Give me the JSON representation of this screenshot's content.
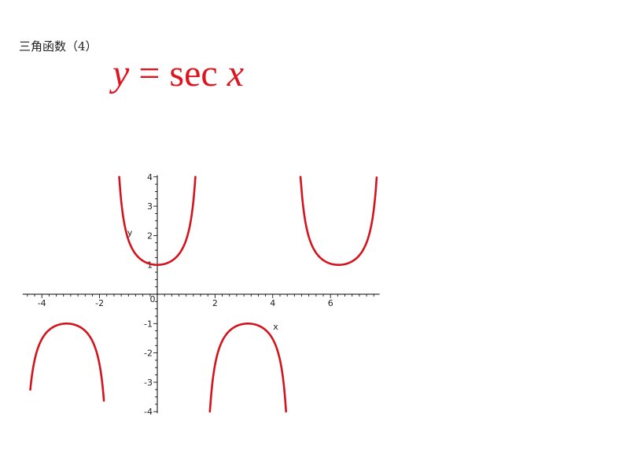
{
  "page": {
    "heading": "三角函数（4）",
    "formula": {
      "lhs": "y",
      "eq": "=",
      "fn": "sec",
      "arg": "x"
    }
  },
  "colors": {
    "curve": "#d4141c",
    "axis": "#000000",
    "formula": "#e0141e"
  },
  "chart_data": {
    "type": "line",
    "title": "",
    "xlabel": "x",
    "ylabel": "y",
    "function": "sec(x)",
    "xlim": [
      -4.5,
      7.7
    ],
    "ylim": [
      -4,
      4
    ],
    "x_ticks": [
      -4,
      -2,
      2,
      4,
      6
    ],
    "y_ticks": [
      -4,
      -3,
      -2,
      -1,
      1,
      2,
      3,
      4
    ],
    "origin_label": "0",
    "grid": false,
    "series": [
      {
        "values": [
          {
            "x": -4.4,
            "y": -3.3
          },
          {
            "x": -4.2,
            "y": -2.04
          },
          {
            "x": -4.0,
            "y": -1.53
          },
          {
            "x": -3.6,
            "y": -1.12
          },
          {
            "x": -3.14,
            "y": -1.0
          },
          {
            "x": -2.6,
            "y": -1.17
          },
          {
            "x": -2.2,
            "y": -1.7
          },
          {
            "x": -2.0,
            "y": -2.4
          },
          {
            "x": -1.85,
            "y": -3.62
          }
        ]
      },
      {
        "values": [
          {
            "x": -1.32,
            "y": 4.0
          },
          {
            "x": -1.2,
            "y": 2.76
          },
          {
            "x": -1.0,
            "y": 1.85
          },
          {
            "x": -0.6,
            "y": 1.21
          },
          {
            "x": 0.0,
            "y": 1.0
          },
          {
            "x": 0.6,
            "y": 1.21
          },
          {
            "x": 1.0,
            "y": 1.85
          },
          {
            "x": 1.2,
            "y": 2.76
          },
          {
            "x": 1.32,
            "y": 4.0
          }
        ]
      },
      {
        "values": [
          {
            "x": 1.82,
            "y": -4.0
          },
          {
            "x": 2.0,
            "y": -2.4
          },
          {
            "x": 2.4,
            "y": -1.36
          },
          {
            "x": 2.8,
            "y": -1.06
          },
          {
            "x": 3.14,
            "y": -1.0
          },
          {
            "x": 3.5,
            "y": -1.07
          },
          {
            "x": 3.9,
            "y": -1.38
          },
          {
            "x": 4.2,
            "y": -2.04
          },
          {
            "x": 4.46,
            "y": -4.0
          }
        ]
      },
      {
        "values": [
          {
            "x": 4.96,
            "y": 4.0
          },
          {
            "x": 5.2,
            "y": 2.13
          },
          {
            "x": 5.6,
            "y": 1.29
          },
          {
            "x": 6.0,
            "y": 1.04
          },
          {
            "x": 6.28,
            "y": 1.0
          },
          {
            "x": 6.7,
            "y": 1.09
          },
          {
            "x": 7.1,
            "y": 1.48
          },
          {
            "x": 7.4,
            "y": 2.28
          },
          {
            "x": 7.6,
            "y": 4.0
          }
        ]
      }
    ]
  }
}
